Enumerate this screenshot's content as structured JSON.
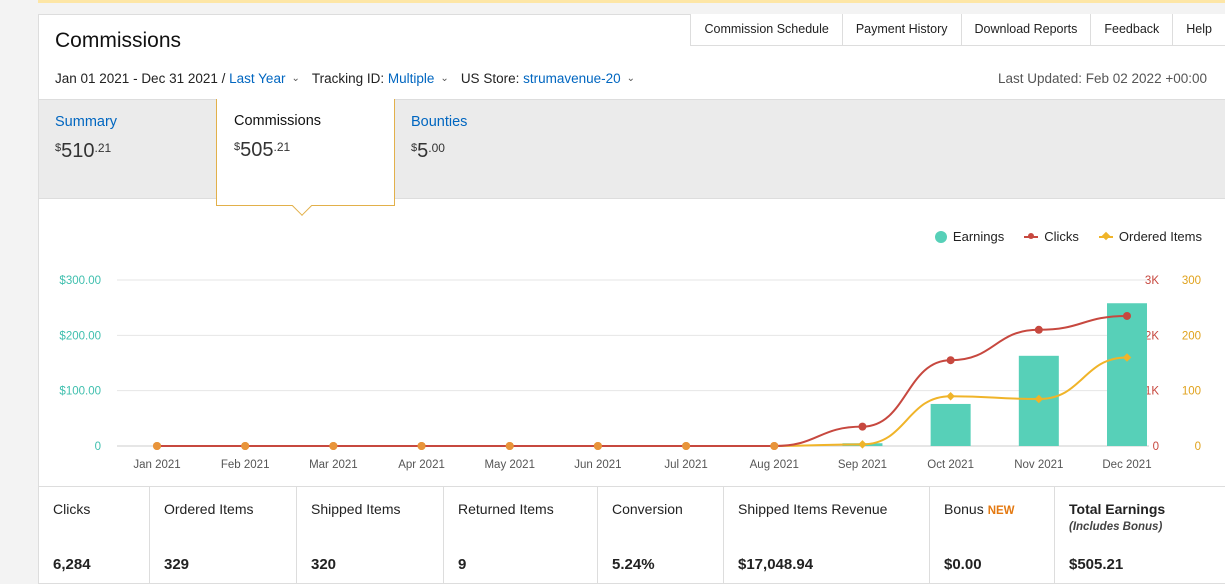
{
  "page": {
    "title": "Commissions"
  },
  "top_tabs": [
    "Commission Schedule",
    "Payment History",
    "Download Reports",
    "Feedback",
    "Help"
  ],
  "filters": {
    "date_range": "Jan 01 2021 - Dec 31 2021 /",
    "period": "Last Year",
    "tracking_label": "Tracking ID:",
    "tracking_value": "Multiple",
    "store_label": "US Store:",
    "store_value": "strumavenue-20",
    "last_updated": "Last Updated: Feb 02 2022 +00:00"
  },
  "summary": {
    "summary": {
      "label": "Summary",
      "currency": "$",
      "dollars": "510",
      "cents": ".21"
    },
    "commissions": {
      "label": "Commissions",
      "currency": "$",
      "dollars": "505",
      "cents": ".21"
    },
    "bounties": {
      "label": "Bounties",
      "currency": "$",
      "dollars": "5",
      "cents": ".00"
    }
  },
  "chart_data": {
    "type": "bar",
    "categories": [
      "Jan 2021",
      "Feb 2021",
      "Mar 2021",
      "Apr 2021",
      "May 2021",
      "Jun 2021",
      "Jul 2021",
      "Aug 2021",
      "Sep 2021",
      "Oct 2021",
      "Nov 2021",
      "Dec 2021"
    ],
    "series": [
      {
        "name": "Earnings",
        "kind": "bar",
        "axis": "left",
        "color": "#57d0b8",
        "values": [
          0,
          0,
          0,
          0,
          0,
          0,
          0,
          0,
          5,
          76,
          163,
          258
        ]
      },
      {
        "name": "Clicks",
        "kind": "line",
        "axis": "right1",
        "color": "#c7483f",
        "values": [
          0,
          0,
          0,
          0,
          0,
          0,
          0,
          0,
          350,
          1550,
          2100,
          2350
        ]
      },
      {
        "name": "Ordered Items",
        "kind": "line",
        "axis": "right2",
        "color": "#f0b429",
        "values": [
          0,
          0,
          0,
          0,
          0,
          0,
          0,
          0,
          3,
          90,
          85,
          160
        ]
      }
    ],
    "y_left": {
      "ticks": [
        "0",
        "$100.00",
        "$200.00",
        "$300.00"
      ],
      "max": 300,
      "color": "#3fbfae"
    },
    "y_right1": {
      "ticks": [
        "0",
        "1K",
        "2K",
        "3K"
      ],
      "max": 3000,
      "color": "#c7483f"
    },
    "y_right2": {
      "ticks": [
        "0",
        "100",
        "200",
        "300"
      ],
      "max": 300,
      "color": "#e0a21c"
    },
    "grid": true,
    "legend": "top-right"
  },
  "metrics": [
    {
      "label": "Clicks",
      "value": "6,284"
    },
    {
      "label": "Ordered Items",
      "value": "329"
    },
    {
      "label": "Shipped Items",
      "value": "320"
    },
    {
      "label": "Returned Items",
      "value": "9"
    },
    {
      "label": "Conversion",
      "value": "5.24%"
    },
    {
      "label": "Shipped Items Revenue",
      "value": "$17,048.94"
    },
    {
      "label": "Bonus",
      "badge": "NEW",
      "value": "$0.00"
    },
    {
      "label": "Total Earnings",
      "sub": "(Includes Bonus)",
      "value": "$505.21"
    }
  ]
}
